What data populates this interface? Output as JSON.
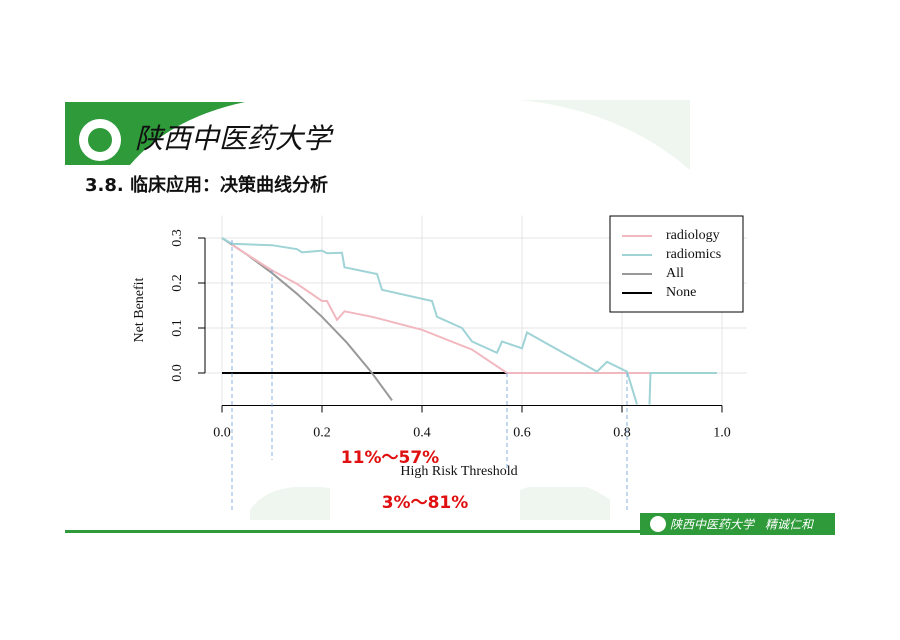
{
  "slide": {
    "logo_text": "陕西中医药大学",
    "title": "3.8. 临床应用：决策曲线分析",
    "footer_logo": "陕西中医药大学",
    "footer_motto": "精诚仁和"
  },
  "chart_data": {
    "type": "line",
    "x_label": "High Risk Threshold",
    "y_label": "Net Benefit",
    "xlim": [
      -0.04,
      1.05
    ],
    "ylim": [
      -0.07,
      0.35
    ],
    "xticks": [
      {
        "value": 0,
        "label": "0.0"
      },
      0.2,
      0.4,
      0.6,
      0.8,
      {
        "value": 1,
        "label": "1.0"
      }
    ],
    "yticks": [
      {
        "value": 0,
        "label": "0.0"
      },
      0.1,
      0.2,
      0.3
    ],
    "grid": true,
    "legend": "upper right",
    "series": [
      {
        "name": "radiology",
        "color": "#f2b8bf",
        "x": [
          0.02,
          0.1,
          0.15,
          0.2,
          0.21,
          0.23,
          0.245,
          0.3,
          0.4,
          0.5,
          0.57,
          0.86
        ],
        "values": [
          0.285,
          0.228,
          0.198,
          0.16,
          0.16,
          0.118,
          0.137,
          0.125,
          0.096,
          0.052,
          0,
          0
        ]
      },
      {
        "name": "radiomics",
        "color": "#9fd3d6",
        "x": [
          0,
          0.02,
          0.1,
          0.15,
          0.16,
          0.2,
          0.21,
          0.24,
          0.245,
          0.31,
          0.32,
          0.42,
          0.43,
          0.48,
          0.5,
          0.55,
          0.56,
          0.6,
          0.61,
          0.75,
          0.77,
          0.81,
          0.83,
          0.84,
          0.855,
          0.857,
          0.99
        ],
        "values": [
          0.3,
          0.287,
          0.284,
          0.275,
          0.268,
          0.272,
          0.266,
          0.267,
          0.235,
          0.22,
          0.185,
          0.16,
          0.125,
          0.1,
          0.07,
          0.045,
          0.07,
          0.055,
          0.09,
          0.003,
          0.025,
          0.003,
          -0.07,
          null,
          -0.07,
          0,
          0
        ]
      },
      {
        "name": "All",
        "color": "#999999",
        "x": [
          0,
          0.05,
          0.1,
          0.15,
          0.2,
          0.25,
          0.3,
          0.34
        ],
        "values": [
          0.3,
          0.263,
          0.222,
          0.176,
          0.125,
          0.067,
          0,
          -0.061
        ]
      },
      {
        "name": "None",
        "color": "#000000",
        "x": [
          0,
          0.81
        ],
        "values": [
          0,
          0
        ]
      }
    ],
    "reference_lines": [
      0.02,
      0.1,
      0.57,
      0.81
    ],
    "annotations": [
      "11%～57%",
      "3%～81%"
    ]
  }
}
